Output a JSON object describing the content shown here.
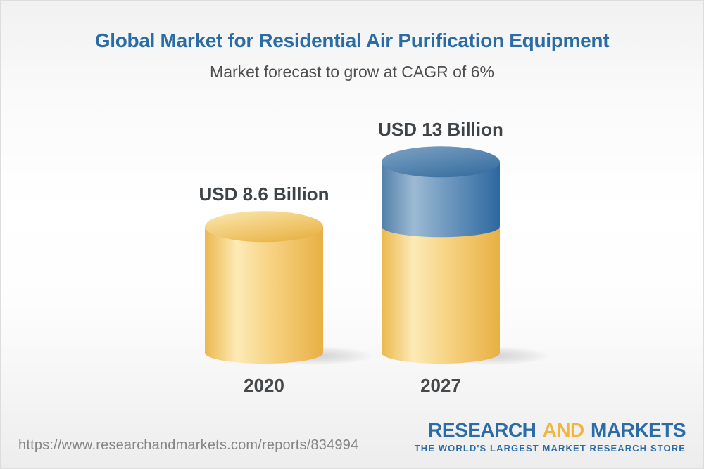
{
  "header": {
    "title": "Global Market for Residential Air Purification Equipment",
    "subtitle": "Market forecast to grow at CAGR of 6%"
  },
  "chart_data": {
    "type": "bar",
    "variant": "3d-cylinder",
    "title": "Global Market for Residential Air Purification Equipment",
    "subtitle": "Market forecast to grow at CAGR of 6%",
    "unit": "USD Billion",
    "categories": [
      "2020",
      "2027"
    ],
    "values": [
      8.6,
      13
    ],
    "ylim": [
      0,
      14
    ],
    "grid": false,
    "legend": false,
    "bars": [
      {
        "category": "2020",
        "total": 8.6,
        "label": "USD 8.6 Billion",
        "segments": [
          {
            "value": 8.6,
            "color": "gold"
          }
        ]
      },
      {
        "category": "2027",
        "total": 13,
        "label": "USD 13 Billion",
        "segments": [
          {
            "value": 8.6,
            "color": "gold"
          },
          {
            "value": 4.4,
            "color": "blue"
          }
        ]
      }
    ]
  },
  "colors": {
    "title": "#2A6CA5",
    "subtitle": "#4E4E4E",
    "value_label": "#3E4347",
    "category_label": "#46494C",
    "url_gray": "#858585",
    "logo_blue": "#2B6CA8",
    "logo_gold": "#F0B63E",
    "gold_body": [
      "#ECB84E",
      "#FCEAB6",
      "#F7D384",
      "#E8B045"
    ],
    "gold_top": [
      "#FCE9B2",
      "#E9B448"
    ],
    "blue_body": [
      "#537FA9",
      "#9DBAD4",
      "#7099BF",
      "#2E68A0"
    ],
    "blue_top": [
      "#7FA3C3",
      "#3A70A2"
    ],
    "shadow": "#6E6E6E"
  },
  "footer": {
    "url": "https://www.researchandmarkets.com/reports/834994",
    "logo": {
      "part1": "RESEARCH",
      "part2": "AND",
      "part3": "MARKETS",
      "tagline": "THE WORLD'S LARGEST MARKET RESEARCH STORE"
    }
  }
}
